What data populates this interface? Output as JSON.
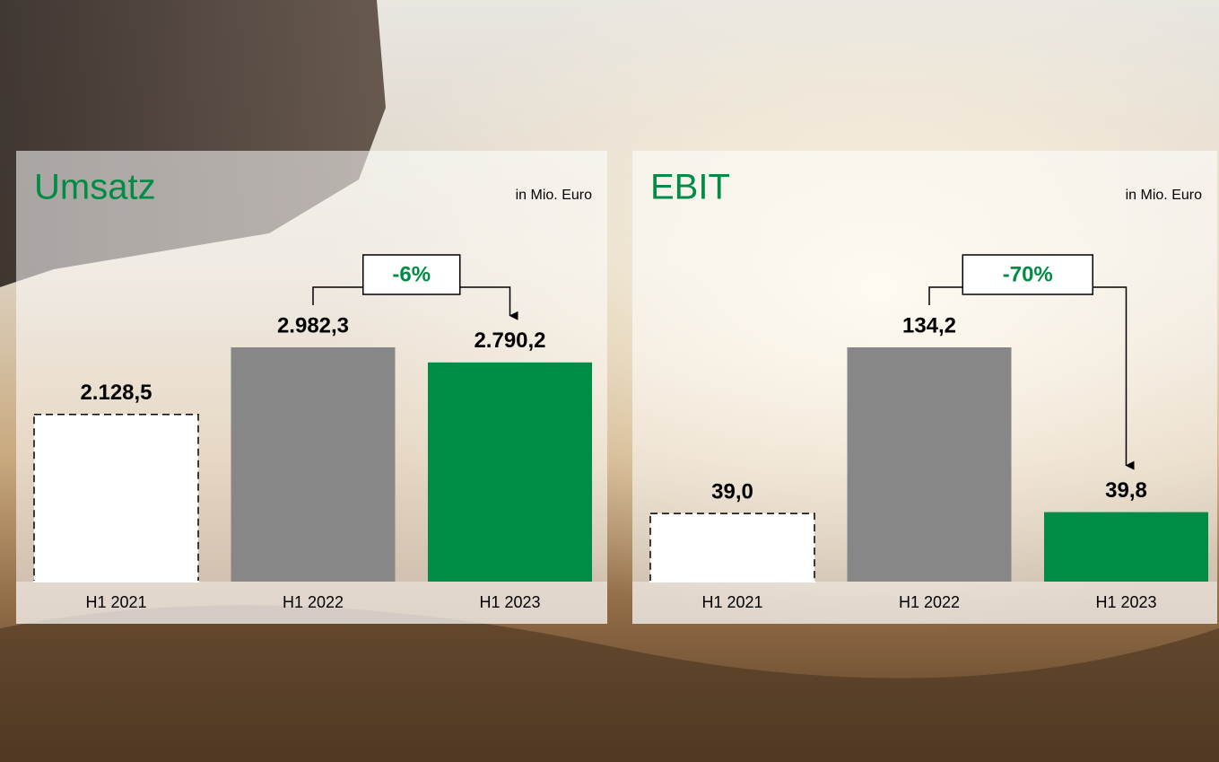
{
  "chart_data": [
    {
      "type": "bar",
      "title": "Umsatz",
      "subtitle": "in Mio. Euro",
      "categories": [
        "H1 2021",
        "H1 2022",
        "H1 2023"
      ],
      "values": [
        2128.5,
        2982.3,
        2790.2
      ],
      "value_labels": [
        "2.128,5",
        "2.982,3",
        "2.790,2"
      ],
      "colors": [
        "#ffffff",
        "#878787",
        "#008c45"
      ],
      "dashed": [
        true,
        false,
        false
      ],
      "annotation": "-6%"
    },
    {
      "type": "bar",
      "title": "EBIT",
      "subtitle": "in Mio. Euro",
      "categories": [
        "H1 2021",
        "H1 2022",
        "H1 2023"
      ],
      "values": [
        39.0,
        134.2,
        39.8
      ],
      "value_labels": [
        "39,0",
        "134,2",
        "39,8"
      ],
      "colors": [
        "#ffffff",
        "#878787",
        "#008c45"
      ],
      "dashed": [
        true,
        false,
        false
      ],
      "annotation": "-70%"
    }
  ]
}
